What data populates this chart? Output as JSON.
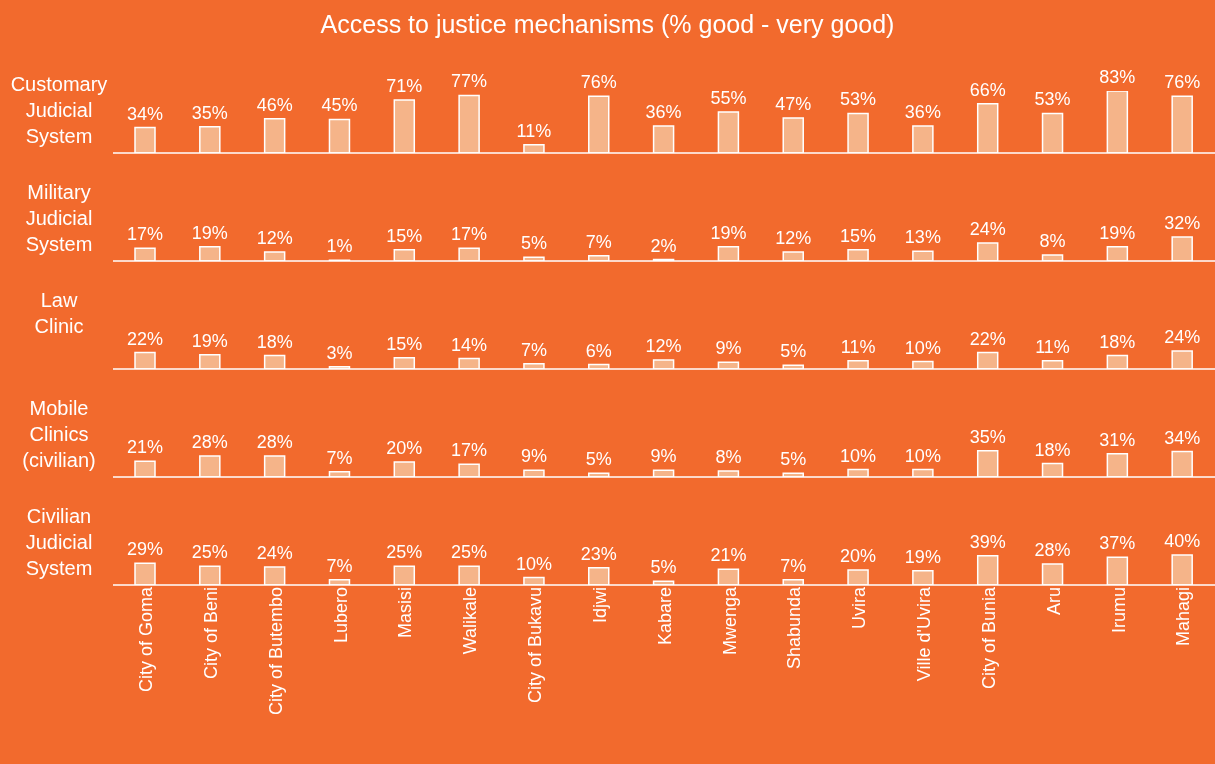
{
  "chart_data": [
    {
      "type": "bar",
      "title": "Access to justice mechanisms (% good - very good)",
      "ylabel": "Customary Judicial System",
      "categories": [
        null,
        null,
        null,
        null,
        null,
        null,
        null,
        null,
        null,
        null,
        null,
        null,
        null,
        null,
        null,
        null,
        null
      ],
      "values": [
        34,
        35,
        46,
        45,
        71,
        77,
        11,
        76,
        36,
        55,
        47,
        53,
        36,
        66,
        53,
        83,
        76
      ],
      "value_labels": [
        "34%",
        "35%",
        "46%",
        "45%",
        "71%",
        "77%",
        "11%",
        "76%",
        "36%",
        "55%",
        "47%",
        "53%",
        "36%",
        "66%",
        "53%",
        "83%",
        "76%"
      ],
      "color": "#f5b489",
      "tick_labels": false
    },
    {
      "type": "bar",
      "ylabel": "Military Judicial System",
      "categories": [
        null,
        null,
        null,
        null,
        null,
        null,
        null,
        null,
        null,
        null,
        null,
        null,
        null,
        null,
        null,
        null,
        null
      ],
      "values": [
        17,
        19,
        12,
        1,
        15,
        17,
        5,
        7,
        2,
        19,
        12,
        15,
        13,
        24,
        8,
        19,
        32
      ],
      "value_labels": [
        "17%",
        "19%",
        "12%",
        "1%",
        "15%",
        "17%",
        "5%",
        "7%",
        "2%",
        "19%",
        "12%",
        "15%",
        "13%",
        "24%",
        "8%",
        "19%",
        "32%"
      ],
      "color": "#f5b489",
      "tick_labels": false
    },
    {
      "type": "bar",
      "ylabel": "Law Clinic",
      "categories": [
        null,
        null,
        null,
        null,
        null,
        null,
        null,
        null,
        null,
        null,
        null,
        null,
        null,
        null,
        null,
        null,
        null
      ],
      "values": [
        22,
        19,
        18,
        3,
        15,
        14,
        7,
        6,
        12,
        9,
        5,
        11,
        10,
        22,
        11,
        18,
        24
      ],
      "value_labels": [
        "22%",
        "19%",
        "18%",
        "3%",
        "15%",
        "14%",
        "7%",
        "6%",
        "12%",
        "9%",
        "5%",
        "11%",
        "10%",
        "22%",
        "11%",
        "18%",
        "24%"
      ],
      "color": "#f5b489",
      "tick_labels": false
    },
    {
      "type": "bar",
      "ylabel": "Mobile Clinics (civilian)",
      "categories": [
        null,
        null,
        null,
        null,
        null,
        null,
        null,
        null,
        null,
        null,
        null,
        null,
        null,
        null,
        null,
        null,
        null
      ],
      "values": [
        21,
        28,
        28,
        7,
        20,
        17,
        9,
        5,
        9,
        8,
        5,
        10,
        10,
        35,
        18,
        31,
        34
      ],
      "value_labels": [
        "21%",
        "28%",
        "28%",
        "7%",
        "20%",
        "17%",
        "9%",
        "5%",
        "9%",
        "8%",
        "5%",
        "10%",
        "10%",
        "35%",
        "18%",
        "31%",
        "34%"
      ],
      "color": "#f5b489",
      "tick_labels": false
    },
    {
      "type": "bar",
      "ylabel": "Civilian Judicial System",
      "categories": [
        "City of Goma",
        "City of Beni",
        "City of Butembo",
        "Lubero",
        "Masisi",
        "Walikale",
        "City of Bukavu",
        "Idjwi",
        "Kabare",
        "Mwenga",
        "Shabunda",
        "Uvira",
        "Ville d'Uvira",
        "City of Bunia",
        "Aru",
        "Irumu",
        "Mahagi"
      ],
      "values": [
        29,
        25,
        24,
        7,
        25,
        25,
        10,
        23,
        5,
        21,
        7,
        20,
        19,
        39,
        28,
        37,
        40
      ],
      "value_labels": [
        "29%",
        "25%",
        "24%",
        "7%",
        "25%",
        "25%",
        "10%",
        "23%",
        "5%",
        "21%",
        "7%",
        "20%",
        "19%",
        "39%",
        "28%",
        "37%",
        "40%"
      ],
      "color": "#f5b489",
      "tick_labels": "x"
    }
  ]
}
